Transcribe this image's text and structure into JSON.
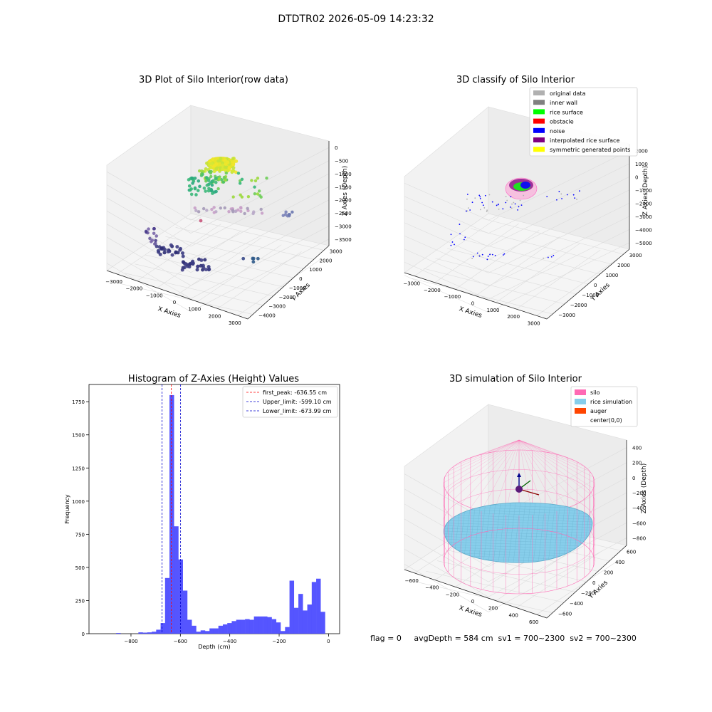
{
  "suptitle": "DTDTR02 2026-05-09 14:23:32",
  "panels": {
    "raw": {
      "title": "3D Plot of Silo Interior(row data)",
      "xlabel": "X Axies",
      "ylabel": "Y Axies",
      "zlabel": "Z Axies (Depth)",
      "xticks": [
        "−3000",
        "−2000",
        "−1000",
        "0",
        "1000",
        "2000",
        "3000"
      ],
      "yticks": [
        "3000",
        "2000",
        "1000",
        "0",
        "−1000",
        "−2000",
        "−3000",
        "−4000"
      ],
      "zticks": [
        "0",
        "−500",
        "−1000",
        "−1500",
        "−2000",
        "−2500",
        "−3000",
        "−3500"
      ]
    },
    "classify": {
      "title": "3D classify of Silo Interior",
      "xlabel": "X Axies",
      "ylabel": "Y Axies",
      "zlabel": "Z Axies (Depth)",
      "xticks": [
        "−3000",
        "−2000",
        "−1000",
        "0",
        "1000",
        "2000",
        "3000"
      ],
      "yticks": [
        "3000",
        "2000",
        "1000",
        "0",
        "−1000",
        "−2000",
        "−3000"
      ],
      "zticks": [
        "2000",
        "1000",
        "0",
        "−1000",
        "−2000",
        "−3000",
        "−4000",
        "−5000"
      ],
      "legend": [
        {
          "label": "original data",
          "color": "#b0b0b0"
        },
        {
          "label": "inner wall",
          "color": "#808080"
        },
        {
          "label": "rice surface",
          "color": "#00ff00"
        },
        {
          "label": "obstacle",
          "color": "#ff0000"
        },
        {
          "label": "noise",
          "color": "#0000ff"
        },
        {
          "label": "interpolated rice surface",
          "color": "#800080"
        },
        {
          "label": "symmetric generated points",
          "color": "#ffff00"
        }
      ]
    },
    "simulation": {
      "title": "3D simulation of Silo Interior",
      "xlabel": "X Axies",
      "ylabel": "Y Axies",
      "zlabel": "Z Axies (Depth)",
      "xticks": [
        "−600",
        "−400",
        "−200",
        "0",
        "200",
        "400",
        "600"
      ],
      "yticks": [
        "600",
        "400",
        "200",
        "0",
        "−200",
        "−400",
        "−600"
      ],
      "zticks": [
        "400",
        "200",
        "0",
        "−200",
        "−400",
        "−600",
        "−800"
      ],
      "legend": [
        {
          "label": "silo",
          "color": "#ff69b4"
        },
        {
          "label": "rice simulation",
          "color": "#87ceeb"
        },
        {
          "label": "auger",
          "color": "#ff4500"
        },
        {
          "label": "center(0,0)",
          "color": ""
        }
      ],
      "status_text": "flag = 0     avgDepth = 584 cm  sv1 = 700~2300  sv2 = 700~2300"
    }
  },
  "chart_data": [
    {
      "type": "bar",
      "title": "Histogram of Z-Axies (Height) Values",
      "xlabel": "Depth (cm)",
      "ylabel": "Frequency",
      "xlim": [
        -970,
        45
      ],
      "ylim": [
        0,
        1880
      ],
      "xticks": [
        -800,
        -600,
        -400,
        -200,
        0
      ],
      "yticks": [
        0,
        250,
        500,
        750,
        1000,
        1250,
        1500,
        1750
      ],
      "bin_width": 18,
      "bar_color": "#4c4cff",
      "bins": [
        [
          -860,
          5
        ],
        [
          -770,
          10
        ],
        [
          -752,
          8
        ],
        [
          -734,
          10
        ],
        [
          -716,
          15
        ],
        [
          -698,
          30
        ],
        [
          -680,
          80
        ],
        [
          -662,
          420
        ],
        [
          -644,
          1800
        ],
        [
          -626,
          810
        ],
        [
          -608,
          560
        ],
        [
          -590,
          325
        ],
        [
          -572,
          105
        ],
        [
          -554,
          60
        ],
        [
          -536,
          15
        ],
        [
          -518,
          25
        ],
        [
          -500,
          20
        ],
        [
          -482,
          40
        ],
        [
          -464,
          40
        ],
        [
          -446,
          60
        ],
        [
          -428,
          70
        ],
        [
          -410,
          80
        ],
        [
          -392,
          95
        ],
        [
          -374,
          105
        ],
        [
          -356,
          105
        ],
        [
          -338,
          110
        ],
        [
          -320,
          105
        ],
        [
          -302,
          130
        ],
        [
          -284,
          130
        ],
        [
          -266,
          130
        ],
        [
          -248,
          125
        ],
        [
          -230,
          110
        ],
        [
          -212,
          85
        ],
        [
          -194,
          20
        ],
        [
          -176,
          50
        ],
        [
          -158,
          400
        ],
        [
          -140,
          195
        ],
        [
          -122,
          300
        ],
        [
          -104,
          175
        ],
        [
          -86,
          220
        ],
        [
          -68,
          390
        ],
        [
          -50,
          415
        ],
        [
          -32,
          165
        ]
      ],
      "vlines": [
        {
          "name": "first_peak",
          "value": -636.55,
          "color": "#ff0000",
          "label": "first_peak: -636.55 cm"
        },
        {
          "name": "upper_limit",
          "value": -599.1,
          "color": "#0000cc",
          "label": "Upper_limit: -599.10 cm"
        },
        {
          "name": "lower_limit",
          "value": -673.99,
          "color": "#0000cc",
          "label": "Lower_limit: -673.99 cm"
        }
      ],
      "legend_position": "top-right"
    }
  ]
}
